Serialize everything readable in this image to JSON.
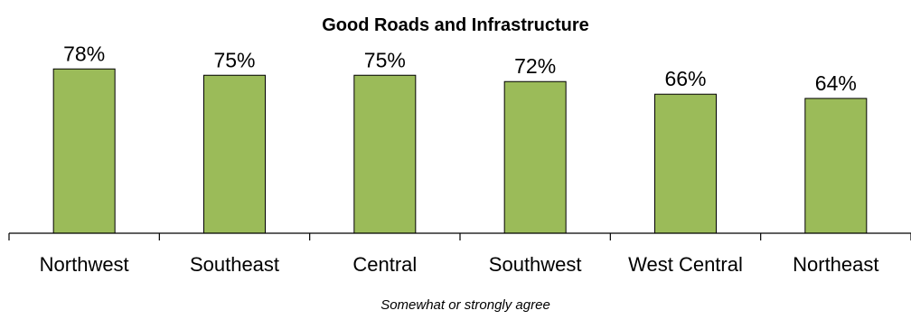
{
  "chart_data": {
    "type": "bar",
    "title": "Good Roads and Infrastructure",
    "categories": [
      "Northwest",
      "Southeast",
      "Central",
      "Southwest",
      "West Central",
      "Northeast"
    ],
    "values": [
      78,
      75,
      75,
      72,
      66,
      64
    ],
    "data_labels": [
      "78%",
      "75%",
      "75%",
      "72%",
      "66%",
      "64%"
    ],
    "xlabel": "Somewhat or strongly agree",
    "ylabel": "",
    "ylim": [
      0,
      100
    ],
    "grid": false,
    "legend": "none",
    "bar_color": "#9bbb59"
  }
}
